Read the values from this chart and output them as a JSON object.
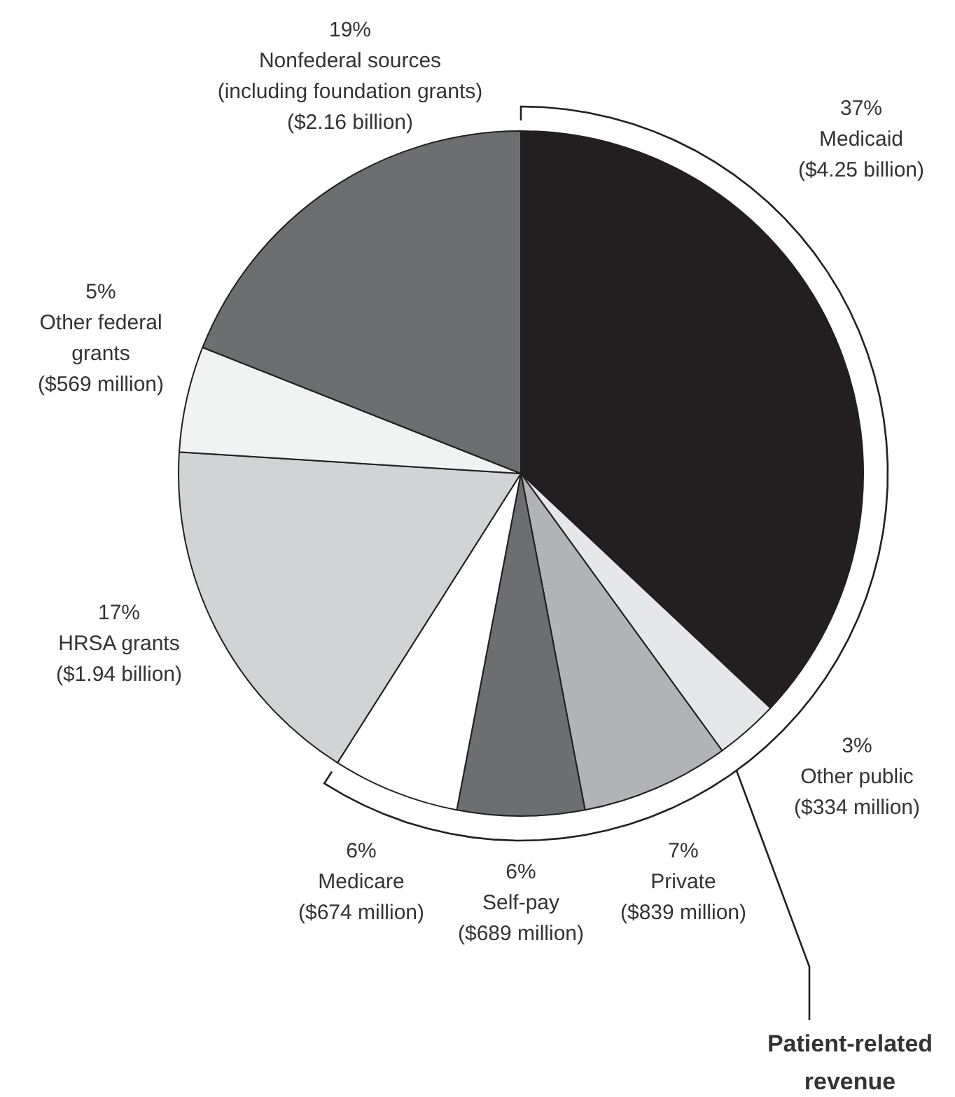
{
  "chart_data": {
    "type": "pie",
    "categories": [
      "Medicaid\n($4.25 billion)",
      "Other public\n($334 million)",
      "Private\n($839 million)",
      "Self-pay\n($689 million)",
      "Medicare\n($674 million)",
      "HRSA grants\n($1.94 billion)",
      "Other federal\ngrants\n($569 million)",
      "Nonfederal sources\n(including foundation grants)\n($2.16 billion)"
    ],
    "values": [
      37,
      3,
      7,
      6,
      6,
      17,
      5,
      19
    ],
    "value_labels": [
      "37%",
      "3%",
      "7%",
      "6%",
      "6%",
      "17%",
      "5%",
      "19%"
    ],
    "colors": [
      "#231f20",
      "#e6e7e8",
      "#b1b3b6",
      "#6d6e71",
      "#ffffff",
      "#d1d3d4",
      "#f1f2f2",
      "#6d6e70"
    ],
    "annotations": [
      "Patient-related\nrevenue"
    ],
    "legend": false
  }
}
